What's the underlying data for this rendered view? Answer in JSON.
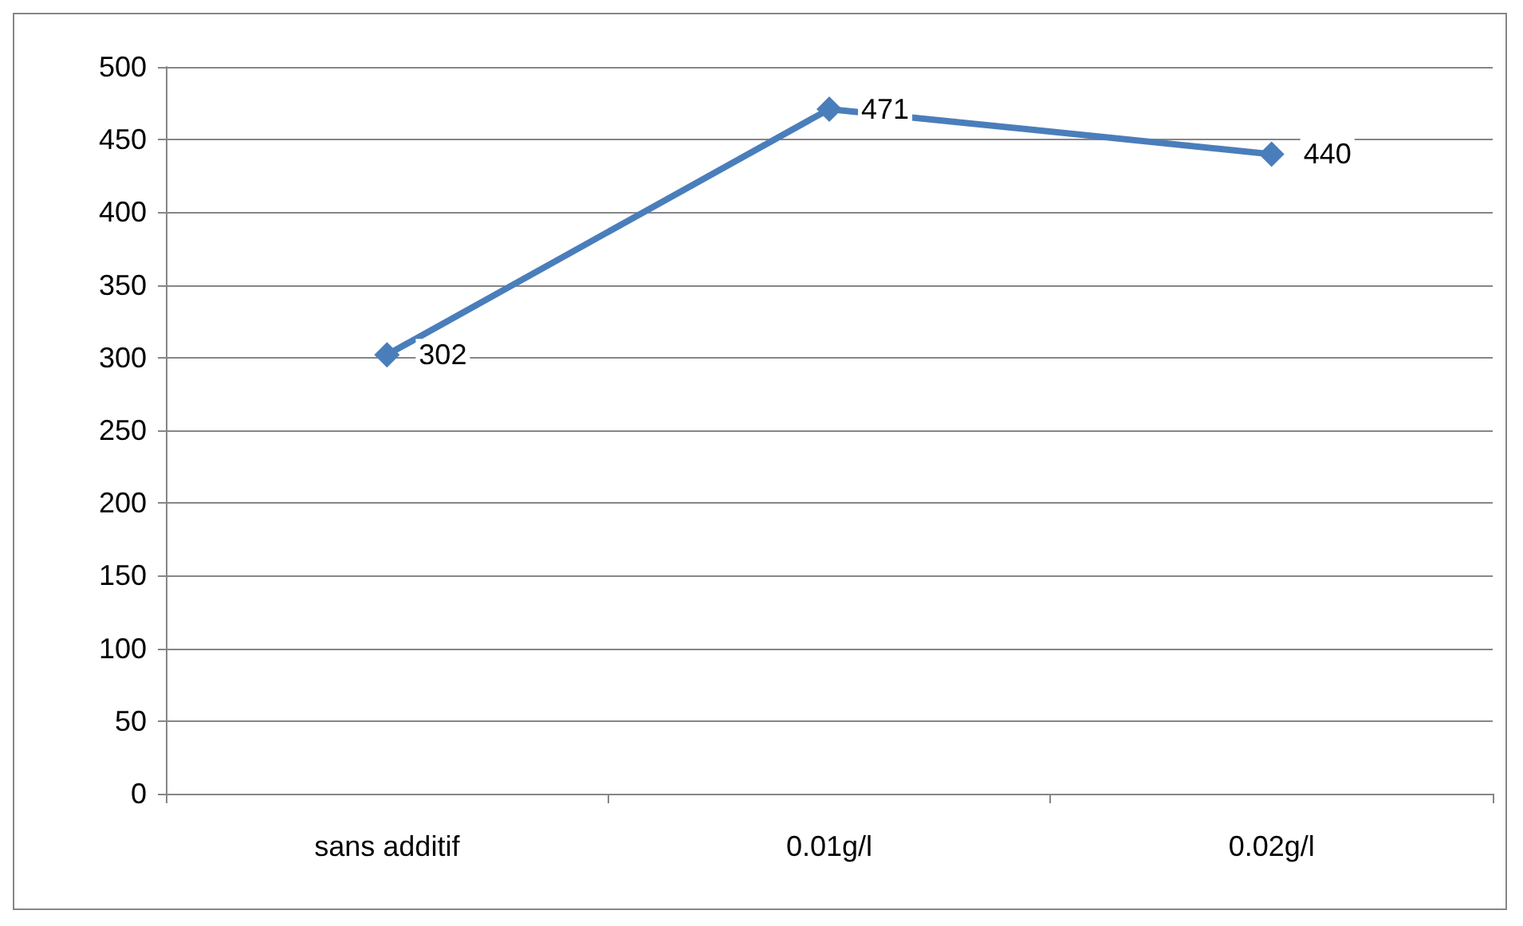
{
  "chart_data": {
    "type": "line",
    "categories": [
      "sans additif",
      "0.01g/l",
      "0.02g/l"
    ],
    "series": [
      {
        "color": "#4a7ebb",
        "values": [
          302,
          471,
          440
        ]
      }
    ],
    "ylim": [
      0,
      500
    ],
    "yticks": [
      0,
      50,
      100,
      150,
      200,
      250,
      300,
      350,
      400,
      450,
      500
    ],
    "grid": "y",
    "marker": "diamond",
    "line_style": "solid",
    "data_labels": true
  }
}
